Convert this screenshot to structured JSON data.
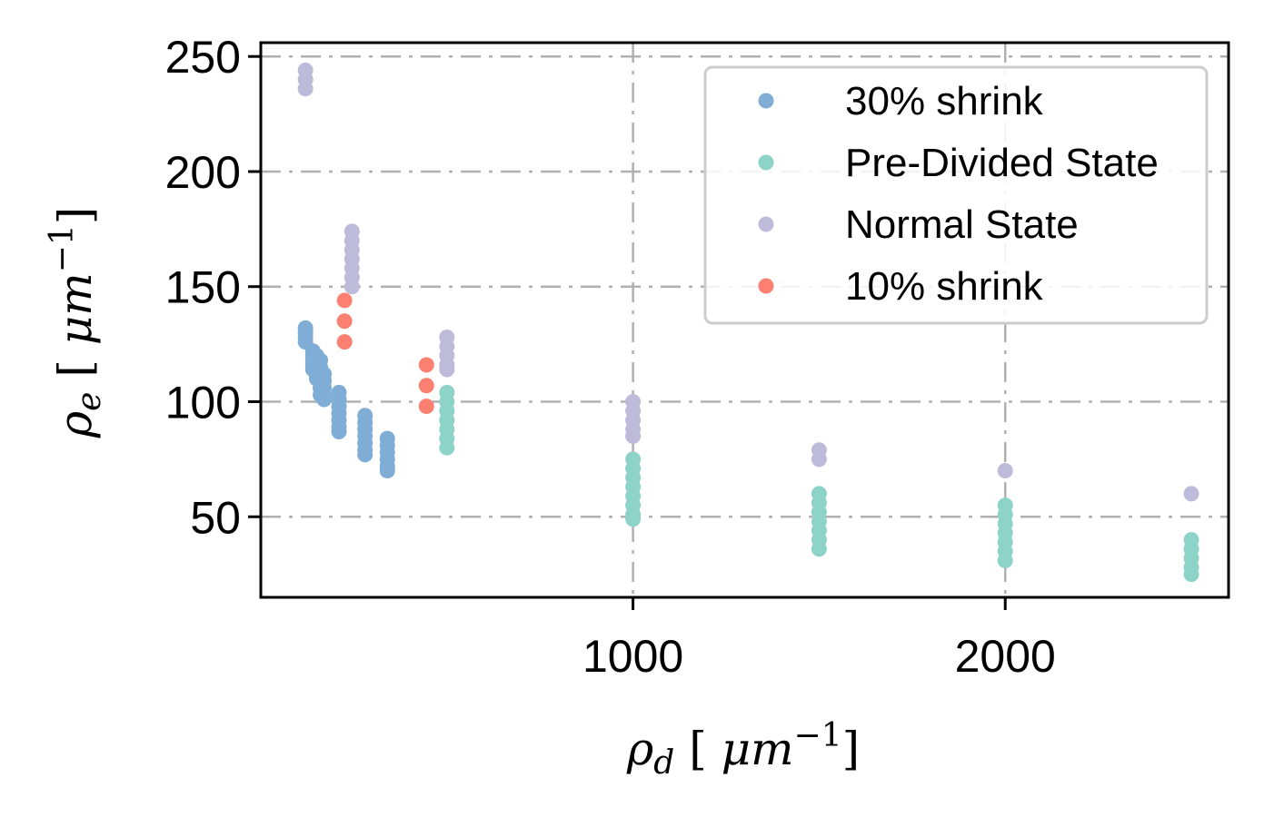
{
  "chart_data": {
    "type": "scatter",
    "xlabel": "ρ_d [ μm⁻¹]",
    "ylabel": "ρ_e [ μm⁻¹]",
    "xlim": [
      0,
      2600
    ],
    "ylim": [
      15,
      256
    ],
    "xticks": [
      1000,
      2000
    ],
    "yticks": [
      50,
      100,
      150,
      200,
      250
    ],
    "grid": true,
    "grid_style": "dash-dot",
    "legend_position": "top-right",
    "series": [
      {
        "name": "30% shrink",
        "color": "#7fadd5",
        "points": [
          [
            120,
            132
          ],
          [
            120,
            130
          ],
          [
            120,
            128
          ],
          [
            120,
            126
          ],
          [
            140,
            122
          ],
          [
            140,
            120
          ],
          [
            140,
            118
          ],
          [
            140,
            116
          ],
          [
            140,
            114
          ],
          [
            150,
            120
          ],
          [
            150,
            118
          ],
          [
            150,
            116
          ],
          [
            150,
            114
          ],
          [
            150,
            112
          ],
          [
            150,
            110
          ],
          [
            160,
            118
          ],
          [
            160,
            115
          ],
          [
            160,
            112
          ],
          [
            160,
            109
          ],
          [
            160,
            106
          ],
          [
            160,
            103
          ],
          [
            170,
            112
          ],
          [
            170,
            109
          ],
          [
            170,
            106
          ],
          [
            170,
            103
          ],
          [
            170,
            101
          ],
          [
            210,
            104
          ],
          [
            210,
            101
          ],
          [
            210,
            98
          ],
          [
            210,
            95
          ],
          [
            210,
            92
          ],
          [
            210,
            89
          ],
          [
            210,
            87
          ],
          [
            280,
            94
          ],
          [
            280,
            91
          ],
          [
            280,
            88
          ],
          [
            280,
            85
          ],
          [
            280,
            82
          ],
          [
            280,
            79
          ],
          [
            280,
            77
          ],
          [
            340,
            84
          ],
          [
            340,
            81
          ],
          [
            340,
            78
          ],
          [
            340,
            75
          ],
          [
            340,
            72
          ],
          [
            340,
            70
          ]
        ]
      },
      {
        "name": "Pre-Divided State",
        "color": "#8dd3c7",
        "points": [
          [
            500,
            104
          ],
          [
            500,
            100
          ],
          [
            500,
            96
          ],
          [
            500,
            92
          ],
          [
            500,
            88
          ],
          [
            500,
            84
          ],
          [
            500,
            80
          ],
          [
            1000,
            75
          ],
          [
            1000,
            71
          ],
          [
            1000,
            67
          ],
          [
            1000,
            63
          ],
          [
            1000,
            59
          ],
          [
            1000,
            55
          ],
          [
            1000,
            51
          ],
          [
            1000,
            49
          ],
          [
            1500,
            60
          ],
          [
            1500,
            56
          ],
          [
            1500,
            52
          ],
          [
            1500,
            48
          ],
          [
            1500,
            44
          ],
          [
            1500,
            40
          ],
          [
            1500,
            36
          ],
          [
            2000,
            55
          ],
          [
            2000,
            51
          ],
          [
            2000,
            47
          ],
          [
            2000,
            43
          ],
          [
            2000,
            39
          ],
          [
            2000,
            35
          ],
          [
            2000,
            31
          ],
          [
            2500,
            40
          ],
          [
            2500,
            36
          ],
          [
            2500,
            32
          ],
          [
            2500,
            28
          ],
          [
            2500,
            25
          ]
        ]
      },
      {
        "name": "Normal State",
        "color": "#bebada",
        "points": [
          [
            120,
            244
          ],
          [
            120,
            240
          ],
          [
            120,
            236
          ],
          [
            245,
            174
          ],
          [
            245,
            170
          ],
          [
            245,
            166
          ],
          [
            245,
            162
          ],
          [
            245,
            158
          ],
          [
            245,
            154
          ],
          [
            245,
            150
          ],
          [
            500,
            128
          ],
          [
            500,
            124
          ],
          [
            500,
            120
          ],
          [
            500,
            116
          ],
          [
            500,
            114
          ],
          [
            1000,
            100
          ],
          [
            1000,
            96
          ],
          [
            1000,
            92
          ],
          [
            1000,
            88
          ],
          [
            1000,
            85
          ],
          [
            1500,
            79
          ],
          [
            1500,
            75
          ],
          [
            2000,
            70
          ],
          [
            2500,
            60
          ]
        ]
      },
      {
        "name": "10% shrink",
        "color": "#fb8072",
        "points": [
          [
            225,
            144
          ],
          [
            225,
            135
          ],
          [
            225,
            126
          ],
          [
            445,
            116
          ],
          [
            445,
            107
          ],
          [
            445,
            98
          ]
        ]
      }
    ]
  }
}
